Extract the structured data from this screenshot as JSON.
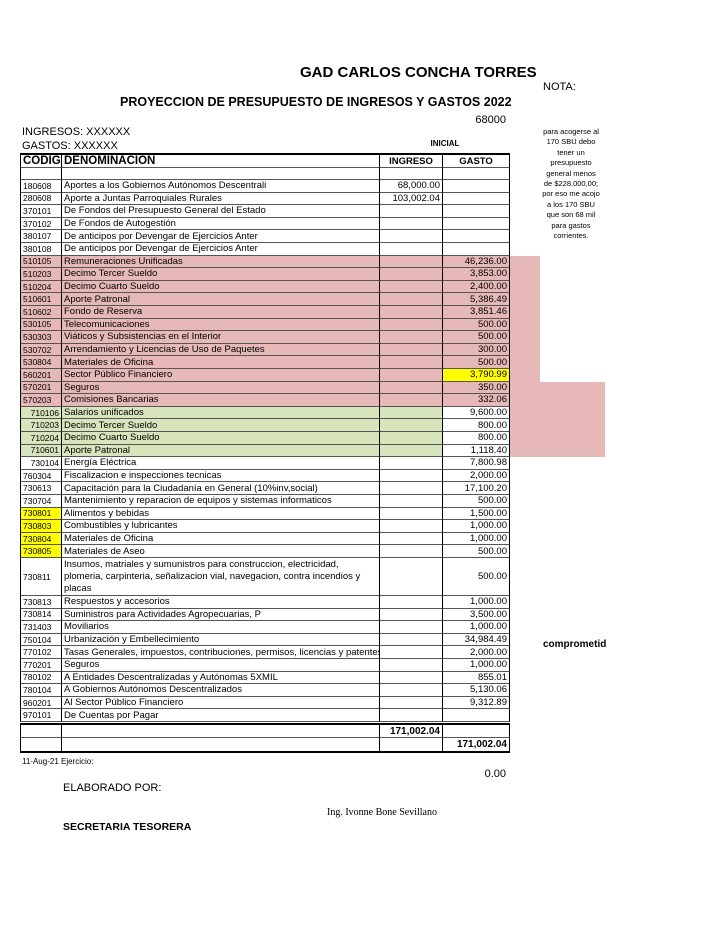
{
  "header": {
    "title": "GAD CARLOS CONCHA TORRES",
    "subtitle": "PROYECCION DE PRESUPUESTO DE INGRESOS Y GASTOS  2022",
    "figure": "68000",
    "ingresos": "INGRESOS: XXXXXX",
    "gastos": "GASTOS: XXXXXX"
  },
  "note": {
    "title": "NOTA:",
    "lines": [
      "para acogerse al",
      "170 SBU debo",
      "tener un",
      "presupuesto",
      "general menos",
      "de $228.000,00;",
      "por eso me acojo",
      "a los 170 SBU",
      "que son 68 mil",
      "para gastos",
      "corrientes."
    ],
    "flag": "comprometid"
  },
  "table": {
    "group": "INICIAL",
    "columns": [
      "CODIGO",
      "DENOMINACION",
      "INGRESO",
      "GASTO"
    ],
    "rows": [
      {
        "code": "180608",
        "name": "Aportes a los Gobiernos Autónomos Descentrali",
        "ingreso": "68,000.00"
      },
      {
        "code": "280608",
        "name": "Aporte a Juntas Parroquiales Rurales",
        "ingreso": "103,002.04"
      },
      {
        "code": "370101",
        "name": "De Fondos del Presupuesto General del Estado"
      },
      {
        "code": "370102",
        "name": "De Fondos de Autogestión"
      },
      {
        "code": "380107",
        "name": "De anticipos por Devengar de Ejercicios Anter"
      },
      {
        "code": "380108",
        "name": "De anticipos por Devengar de Ejercicios Anter"
      },
      {
        "code": "510105",
        "name": "Remuneraciones Unificadas",
        "gasto": "46,236.00"
      },
      {
        "code": "510203",
        "name": "Decimo Tercer Sueldo",
        "gasto": "3,853.00"
      },
      {
        "code": "510204",
        "name": "Decimo Cuarto Sueldo",
        "gasto": "2,400.00"
      },
      {
        "code": "510601",
        "name": "Aporte Patronal",
        "gasto": "5,386.49"
      },
      {
        "code": "510602",
        "name": "Fondo de Reserva",
        "gasto": "3,851.46"
      },
      {
        "code": "530105",
        "name": "Telecomunicaciones",
        "gasto": "500.00"
      },
      {
        "code": "530303",
        "name": "Viáticos y Subsistencias en el Interior",
        "gasto": "500.00"
      },
      {
        "code": "530702",
        "name": "Arrendamiento y Licencias de Uso de Paquetes",
        "gasto": "300.00"
      },
      {
        "code": "530804",
        "name": "Materiales de Oficina",
        "gasto": "500.00"
      },
      {
        "code": "560201",
        "name": "Sector Público Financiero",
        "gasto": "3,790.99"
      },
      {
        "code": "570201",
        "name": "Seguros",
        "gasto": "350.00"
      },
      {
        "code": "570203",
        "name": "Comisiones Bancarias",
        "gasto": "332.06"
      },
      {
        "code": "710106",
        "name": "Salarios unificados",
        "gasto": "9,600.00"
      },
      {
        "code": "710203",
        "name": "Decimo Tercer Sueldo",
        "gasto": "800.00"
      },
      {
        "code": "710204",
        "name": "Decimo Cuarto Sueldo",
        "gasto": "800.00"
      },
      {
        "code": "710601",
        "name": "Aporte Patronal",
        "gasto": "1,118.40"
      },
      {
        "code": "730104",
        "name": "Energía Eléctrica",
        "gasto": "7,800.98"
      },
      {
        "code": "760304",
        "name": "Fiscalizacion e inspecciones tecnicas",
        "gasto": "2,000.00"
      },
      {
        "code": "730613",
        "name": "Capacitación para la Ciudadanía en General (10%inv,social)",
        "gasto": "17,100.20"
      },
      {
        "code": "730704",
        "name": "Mantenimiento y reparacion de equipos y sistemas informaticos",
        "gasto": "500.00"
      },
      {
        "code": "730801",
        "name": "Alimentos y bebidas",
        "gasto": "1,500.00"
      },
      {
        "code": "730803",
        "name": "Combustibles y lubricantes",
        "gasto": "1,000.00"
      },
      {
        "code": "730804",
        "name": "Materiales de Oficina",
        "gasto": "1,000.00"
      },
      {
        "code": "730805",
        "name": "Materiales de Aseo",
        "gasto": "500.00"
      },
      {
        "code": "730811",
        "name": "Insumos, matriales y sumunistros para construccion, electricidad, plomeria, carpinteria, señalizacion vial, navegacion, contra incendios y placas",
        "gasto": "500.00"
      },
      {
        "code": "730813",
        "name": "Respuestos y accesorios",
        "gasto": "1,000.00"
      },
      {
        "code": "730814",
        "name": "Suministros para Actividades Agropecuarias, P",
        "gasto": "3,500.00"
      },
      {
        "code": "731403",
        "name": "Moviliarios",
        "gasto": "1,000.00"
      },
      {
        "code": "750104",
        "name": "Urbanización y Embellecimiento",
        "gasto": "34,984.49"
      },
      {
        "code": "770102",
        "name": "Tasas Generales, impuestos, contribuciones, permisos, licencias y patentes",
        "gasto": "2,000.00"
      },
      {
        "code": "770201",
        "name": "Seguros",
        "gasto": "1,000.00"
      },
      {
        "code": "780102",
        "name": "A Entidades Descentralizadas y Autónomas 5XMIL",
        "gasto": "855.01"
      },
      {
        "code": "780104",
        "name": "A Gobiernos Autónomos Descentralizados",
        "gasto": "5,130.06"
      },
      {
        "code": "960201",
        "name": "Al Sector Público Financiero",
        "gasto": "9,312.89"
      },
      {
        "code": "970101",
        "name": "De Cuentas por Pagar"
      }
    ],
    "total_ingreso": "171,002.04",
    "total_gasto": "171,002.04"
  },
  "footer": {
    "date": "11-Aug-21 Ejercicio:",
    "balance": "0.00",
    "prepared": "ELABORADO POR:",
    "signer": "Ing. Ivonne Bone Sevillano",
    "role": "SECRETARIA TESORERA"
  }
}
